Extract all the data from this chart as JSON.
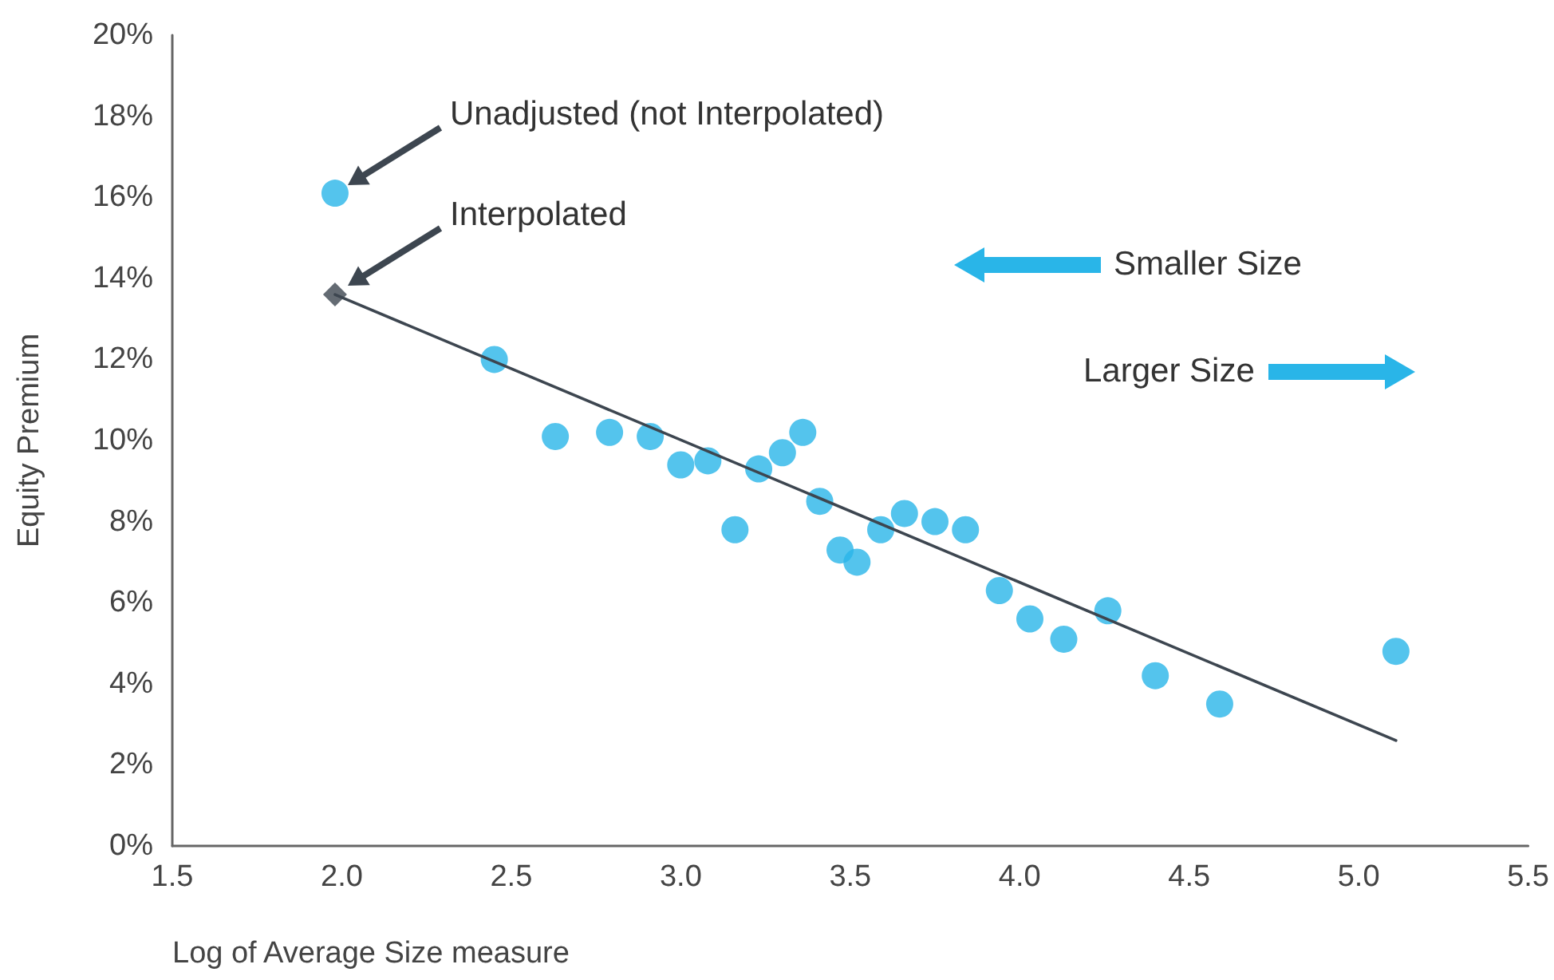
{
  "chart_data": {
    "type": "scatter",
    "xlabel": "Log of Average Size measure",
    "ylabel": "Equity Premium",
    "xlim": [
      1.5,
      5.5
    ],
    "xticks": [
      1.5,
      {
        "value": 2,
        "label": "2.0"
      },
      2.5,
      {
        "value": 3,
        "label": "3.0"
      },
      3.5,
      {
        "value": 4,
        "label": "4.0"
      },
      4.5,
      {
        "value": 5,
        "label": "5.0"
      },
      5.5
    ],
    "ylim": [
      0,
      20
    ],
    "yticks": [
      {
        "value": 0,
        "label": "0%"
      },
      {
        "value": 2,
        "label": "2%"
      },
      {
        "value": 4,
        "label": "4%"
      },
      {
        "value": 6,
        "label": "6%"
      },
      {
        "value": 8,
        "label": "8%"
      },
      {
        "value": 10,
        "label": "10%"
      },
      {
        "value": 12,
        "label": "12%"
      },
      {
        "value": 14,
        "label": "14%"
      },
      {
        "value": 16,
        "label": "16%"
      },
      {
        "value": 18,
        "label": "18%"
      },
      {
        "value": 20,
        "label": "20%"
      }
    ],
    "grid": false,
    "marker": "circle",
    "series": [
      {
        "color": "#29b5e8",
        "x": [
          1.98,
          2.45,
          2.63,
          2.79,
          2.91,
          3.0,
          3.08,
          3.16,
          3.23,
          3.3,
          3.36,
          3.41,
          3.47,
          3.52,
          3.59,
          3.66,
          3.75,
          3.84,
          3.94,
          4.03,
          4.13,
          4.26,
          4.4,
          4.59,
          5.11
        ],
        "values": [
          16.1,
          12.0,
          10.1,
          10.2,
          10.1,
          9.4,
          9.5,
          7.8,
          9.3,
          9.7,
          10.2,
          8.5,
          7.3,
          7.0,
          7.8,
          8.2,
          8.0,
          7.8,
          6.3,
          5.6,
          5.1,
          5.8,
          4.2,
          3.5,
          4.8
        ]
      },
      {
        "type": "line",
        "color": "#3d4650",
        "marker": "none",
        "line_style": "solid",
        "x": [
          1.98,
          5.11
        ],
        "values": [
          13.6,
          2.6
        ]
      },
      {
        "type": "scatter",
        "color": "#3d4650",
        "marker": "diamond",
        "x": [
          1.98
        ],
        "values": [
          13.6
        ]
      }
    ],
    "annotations": [
      "Unadjusted (not Interpolated)",
      "Interpolated",
      "Smaller Size",
      "Larger Size"
    ]
  }
}
